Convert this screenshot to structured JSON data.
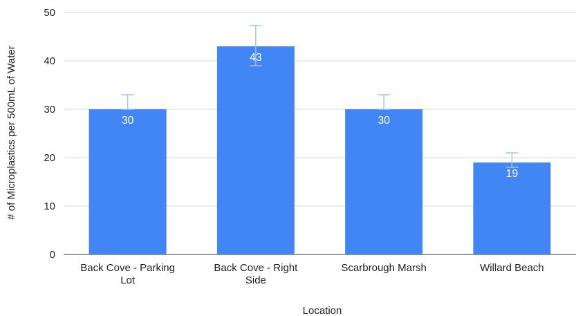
{
  "chart_data": {
    "type": "bar",
    "title": "",
    "xlabel": "Location",
    "ylabel": "# of Microplastics per 500mL of Water",
    "categories": [
      [
        "Back Cove - Parking",
        "Lot"
      ],
      [
        "Back Cove - Right",
        "Side"
      ],
      [
        "Scarbrough Marsh"
      ],
      [
        "Willard Beach"
      ]
    ],
    "values": [
      30,
      43,
      30,
      19
    ],
    "error_bars": [
      {
        "low": 30,
        "high": 33
      },
      {
        "low": 39,
        "high": 47.3
      },
      {
        "low": 30,
        "high": 33
      },
      {
        "low": 18,
        "high": 21
      }
    ],
    "ylim": [
      0,
      50
    ],
    "yticks": [
      0,
      10,
      20,
      30,
      40,
      50
    ],
    "grid": true,
    "bar_color": "#4285f4",
    "error_bar_color": "#a4c2f4"
  }
}
